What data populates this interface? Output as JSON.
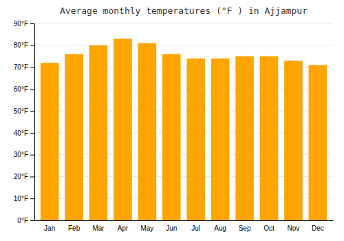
{
  "chart_data": {
    "type": "bar",
    "title": "Average monthly temperatures (°F ) in Ajjampur",
    "categories": [
      "Jan",
      "Feb",
      "Mar",
      "Apr",
      "May",
      "Jun",
      "Jul",
      "Aug",
      "Sep",
      "Oct",
      "Nov",
      "Dec"
    ],
    "values": [
      72,
      76,
      80,
      83,
      81,
      76,
      74,
      74,
      75,
      75,
      73,
      71
    ],
    "color": "#FFA500",
    "ylim": [
      0,
      90
    ],
    "yticks": [
      {
        "value": 0,
        "label": "0°F"
      },
      {
        "value": 10,
        "label": "10°F"
      },
      {
        "value": 20,
        "label": "20°F"
      },
      {
        "value": 30,
        "label": "30°F"
      },
      {
        "value": 40,
        "label": "40°F"
      },
      {
        "value": 50,
        "label": "50°F"
      },
      {
        "value": 60,
        "label": "60°F"
      },
      {
        "value": 70,
        "label": "70°F"
      },
      {
        "value": 80,
        "label": "80°F"
      },
      {
        "value": 90,
        "label": "90°F"
      }
    ],
    "grid": true
  }
}
